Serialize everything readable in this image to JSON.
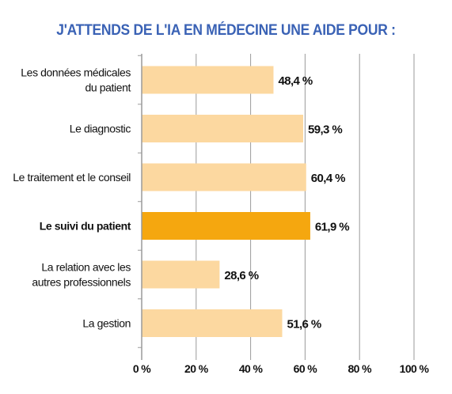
{
  "chart_data": {
    "type": "bar",
    "orientation": "horizontal",
    "title": "J'ATTENDS DE L'IA EN MÉDECINE UNE AIDE POUR :",
    "categories": [
      [
        "Les données médicales",
        "du patient"
      ],
      [
        "Le diagnostic"
      ],
      [
        "Le traitement et le conseil"
      ],
      [
        "Le suivi du patient"
      ],
      [
        "La relation avec les",
        "autres professionnels"
      ],
      [
        "La gestion"
      ]
    ],
    "values": [
      48.4,
      59.3,
      60.4,
      61.9,
      28.6,
      51.6
    ],
    "value_labels": [
      "48,4 %",
      "59,3 %",
      "60,4 %",
      "61,9 %",
      "28,6 %",
      "51,6 %"
    ],
    "highlighted_index": 3,
    "xlim": [
      0,
      100
    ],
    "x_ticks": [
      0,
      20,
      40,
      60,
      80,
      100
    ],
    "x_tick_labels": [
      "0 %",
      "20 %",
      "40 %",
      "60 %",
      "80 %",
      "100 %"
    ],
    "grid": "vertical",
    "colors": {
      "bar": "#fcd8a0",
      "bar_highlight": "#f5a70f",
      "title": "#3a62b5",
      "grid": "#9a9a9a",
      "text": "#111111"
    }
  }
}
